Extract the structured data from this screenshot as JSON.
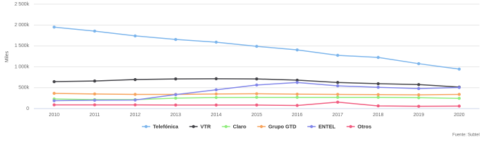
{
  "chart_data": {
    "type": "line",
    "y_label": "Miles",
    "source": "Fuente: Subtel",
    "categories": [
      "2010",
      "2011",
      "2012",
      "2013",
      "2014",
      "2015",
      "2016",
      "2017",
      "2018",
      "2019",
      "2020"
    ],
    "ylim": [
      0,
      2500000
    ],
    "yticks": [
      0,
      {
        "value": 500000,
        "label": "500k"
      },
      {
        "value": 1000000,
        "label": "1 000k"
      },
      {
        "value": 1500000,
        "label": "1 500k"
      },
      {
        "value": 2000000,
        "label": "2 000k"
      },
      {
        "value": 2500000,
        "label": "2 500k"
      }
    ],
    "grid": true,
    "legend": "bottom",
    "series": [
      {
        "name": "Telefónica",
        "color": "#7cb5ec",
        "values": [
          1950000,
          1855000,
          1740000,
          1655000,
          1590000,
          1490000,
          1405000,
          1275000,
          1225000,
          1075000,
          945000
        ]
      },
      {
        "name": "VTR",
        "color": "#434348",
        "values": [
          645000,
          660000,
          695000,
          710000,
          715000,
          710000,
          680000,
          625000,
          595000,
          575000,
          515000
        ]
      },
      {
        "name": "Claro",
        "color": "#90ed7d",
        "values": [
          230000,
          215000,
          215000,
          250000,
          265000,
          270000,
          270000,
          270000,
          270000,
          260000,
          245000
        ]
      },
      {
        "name": "Grupo GTD",
        "color": "#f7a35c",
        "values": [
          365000,
          350000,
          340000,
          340000,
          350000,
          355000,
          345000,
          340000,
          335000,
          330000,
          340000
        ]
      },
      {
        "name": "ENTEL",
        "color": "#8085e9",
        "values": [
          190000,
          200000,
          205000,
          335000,
          450000,
          565000,
          625000,
          545000,
          510000,
          480000,
          505000
        ]
      },
      {
        "name": "Otros",
        "color": "#f15c80",
        "values": [
          90000,
          90000,
          90000,
          85000,
          85000,
          85000,
          75000,
          155000,
          65000,
          55000,
          60000
        ]
      }
    ]
  }
}
